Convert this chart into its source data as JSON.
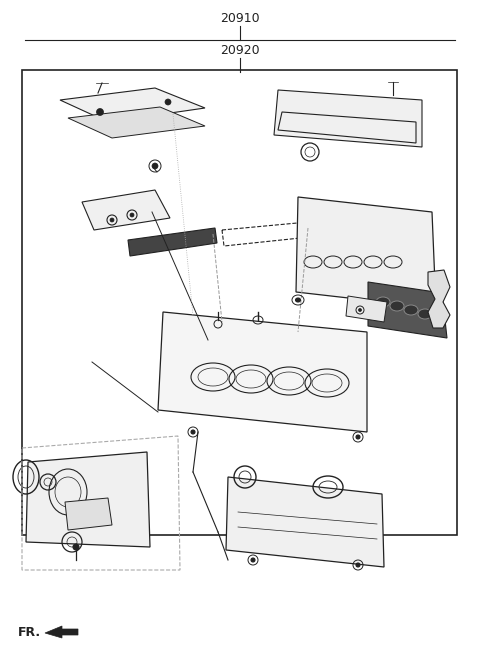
{
  "title1": "20910",
  "title2": "20920",
  "fr_label": "FR.",
  "bg_color": "#ffffff",
  "line_color": "#555555",
  "dark_color": "#222222",
  "fig_width": 4.8,
  "fig_height": 6.54,
  "dpi": 100
}
